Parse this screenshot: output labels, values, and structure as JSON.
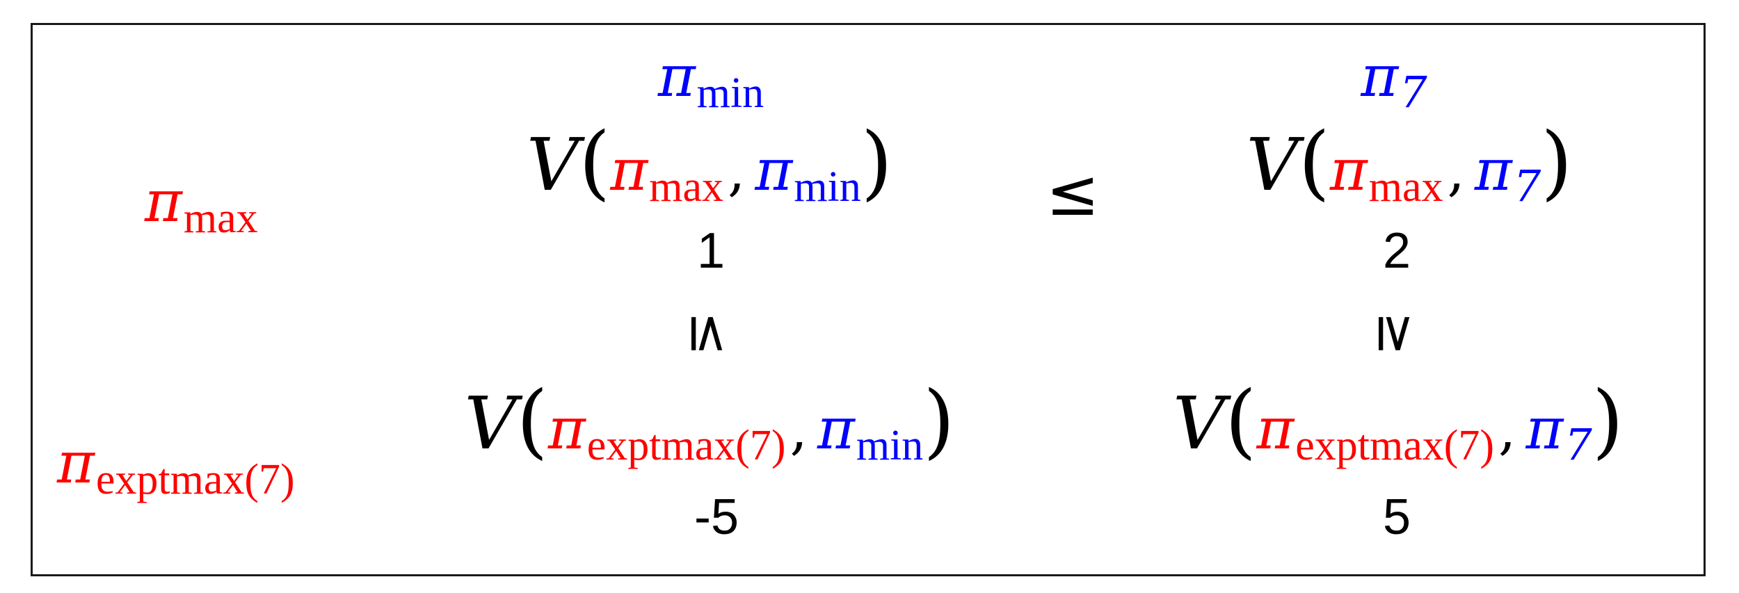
{
  "colors": {
    "max_player": "#ff0000",
    "min_player": "#0000ff",
    "text": "#000000"
  },
  "columns": {
    "col1": {
      "symbol": "π",
      "sub": "min"
    },
    "col2": {
      "symbol": "π",
      "sub": "7"
    }
  },
  "rows": {
    "row1": {
      "symbol": "π",
      "sub": "max"
    },
    "row2": {
      "symbol": "π",
      "sub": "exptmax(7)"
    }
  },
  "cells": {
    "r1c1": {
      "fn": "V",
      "open": "(",
      "p1": "π",
      "p1sub": "max",
      "comma": ",",
      "p2": "π",
      "p2sub": "min",
      "close": ")",
      "value": "1"
    },
    "r1c2": {
      "fn": "V",
      "open": "(",
      "p1": "π",
      "p1sub": "max",
      "comma": ",",
      "p2": "π",
      "p2sub": "7",
      "close": ")",
      "value": "2"
    },
    "r2c1": {
      "fn": "V",
      "open": "(",
      "p1": "π",
      "p1sub": "exptmax(7)",
      "comma": ",",
      "p2": "π",
      "p2sub": "min",
      "close": ")",
      "value": "-5"
    },
    "r2c2": {
      "fn": "V",
      "open": "(",
      "p1": "π",
      "p1sub": "exptmax(7)",
      "comma": ",",
      "p2": "π",
      "p2sub": "7",
      "close": ")",
      "value": "5"
    }
  },
  "relations": {
    "horizontal": "≤",
    "vertical_left": "≤",
    "vertical_right": "≥"
  }
}
